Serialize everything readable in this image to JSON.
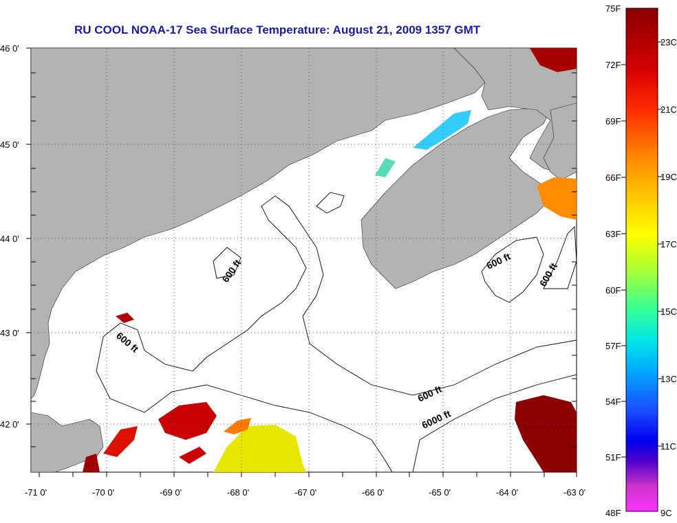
{
  "title": "RU COOL  NOAA-17  Sea Surface Temperature:  August 21, 2009 1357 GMT",
  "lat_labels": [
    "46 0'",
    "45 0'",
    "44 0'",
    "43 0'",
    "42 0'"
  ],
  "lon_labels": [
    "-71 0'",
    "-70 0'",
    "-69 0'",
    "-68 0'",
    "-67 0'",
    "-66 0'",
    "-65 0'",
    "-64 0'",
    "-63 0'"
  ],
  "contour_labels": [
    "600 ft",
    "600 ft",
    "600 ft",
    "600 ft",
    "600 ft",
    "6000 ft"
  ],
  "colorbar": {
    "f_labels": [
      "75F",
      "72F",
      "69F",
      "66F",
      "63F",
      "60F",
      "57F",
      "54F",
      "51F",
      "48F"
    ],
    "c_labels": [
      "23C",
      "21C",
      "19C",
      "17C",
      "15C",
      "13C",
      "11C",
      "9C"
    ],
    "colors": [
      "#8b0000",
      "#ff1a00",
      "#ff8c00",
      "#ffff00",
      "#66ff66",
      "#00ccff",
      "#0033ff",
      "#0000cc",
      "#ff33cc"
    ]
  },
  "land_color": "#b3b3b3"
}
